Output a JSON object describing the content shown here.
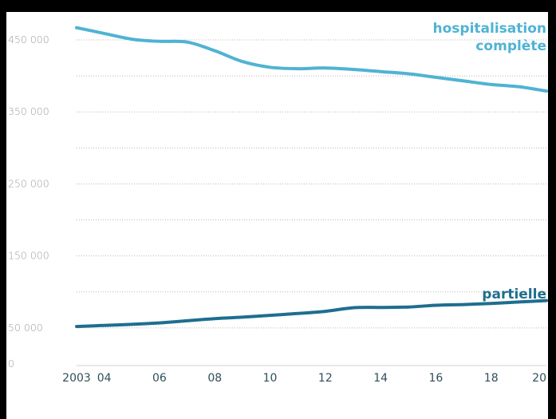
{
  "chart_data": {
    "type": "line",
    "title": "",
    "xlabel": "",
    "ylabel": "",
    "x": [
      2003,
      2004,
      2005,
      2006,
      2007,
      2008,
      2009,
      2010,
      2011,
      2012,
      2013,
      2014,
      2015,
      2016,
      2017,
      2018,
      2019,
      2020
    ],
    "x_tick_labels": [
      "2003",
      "04",
      "06",
      "08",
      "10",
      "12",
      "14",
      "16",
      "18",
      "20"
    ],
    "x_tick_values": [
      2003,
      2004,
      2006,
      2008,
      2010,
      2012,
      2014,
      2016,
      2018,
      2020
    ],
    "y_tick_labels": [
      "0",
      "50 000",
      "150 000",
      "250 000",
      "350 000",
      "450 000"
    ],
    "y_tick_values": [
      0,
      50000,
      150000,
      250000,
      350000,
      450000
    ],
    "ylim": [
      0,
      470000
    ],
    "grid": "horizontal dotted every 50000",
    "series": [
      {
        "name": "hospitalisation complète",
        "label_lines": [
          "hospitalisation",
          "complète"
        ],
        "color": "#4fb3d3",
        "values": [
          467000,
          459000,
          451000,
          448000,
          447000,
          435000,
          420000,
          412000,
          410000,
          411000,
          409000,
          406000,
          403000,
          398000,
          393000,
          388000,
          385000,
          379000
        ]
      },
      {
        "name": "partielle",
        "label_lines": [
          "partielle"
        ],
        "color": "#1f6e8f",
        "values": [
          52000,
          53500,
          55000,
          57000,
          60000,
          63000,
          65000,
          67500,
          70000,
          73000,
          78000,
          78500,
          79000,
          81500,
          82500,
          84000,
          86000,
          88000
        ]
      }
    ]
  }
}
